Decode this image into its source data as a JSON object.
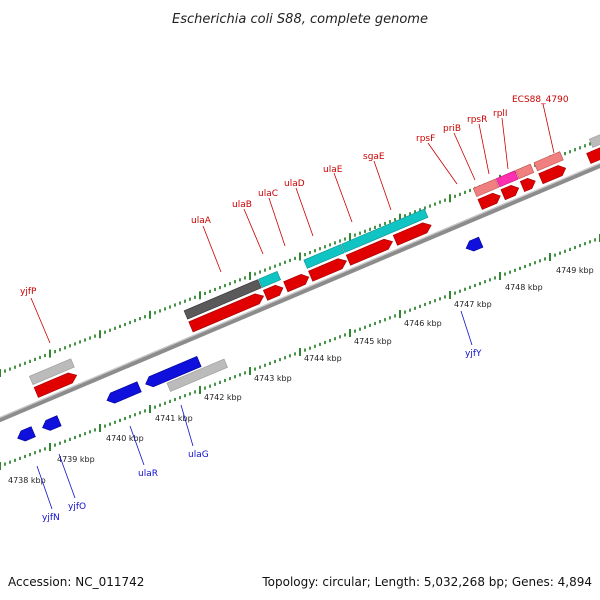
{
  "title": "Escherichia coli S88, complete genome",
  "footer": {
    "accession": "Accession: NC_011742",
    "stats": "Topology: circular; Length: 5,032,268 bp; Genes: 4,894"
  },
  "colors": {
    "forward_gene": "#e00000",
    "reverse_gene": "#1010dd",
    "gene_name_forward": "#cc0000",
    "gene_name_reverse": "#1010cc",
    "pseudo_gray": "#bbbbbb",
    "dark_gray": "#555555",
    "cyan": "#11c4c4",
    "pink": "#f08080",
    "magenta": "#ff2fb0",
    "tick_green": "#1a7a1a"
  },
  "ruler": {
    "unit": "kbp",
    "labels": [
      "4738 kbp",
      "4739 kbp",
      "4740 kbp",
      "4741 kbp",
      "4742 kbp",
      "4743 kbp",
      "4744 kbp",
      "4745 kbp",
      "4746 kbp",
      "4747 kbp",
      "4748 kbp",
      "4749 kbp"
    ]
  },
  "gene_labels": [
    {
      "text": "yjfP",
      "strand": "forward"
    },
    {
      "text": "ulaA",
      "strand": "forward"
    },
    {
      "text": "ulaB",
      "strand": "forward"
    },
    {
      "text": "ulaC",
      "strand": "forward"
    },
    {
      "text": "ulaD",
      "strand": "forward"
    },
    {
      "text": "ulaE",
      "strand": "forward"
    },
    {
      "text": "sgaE",
      "strand": "forward"
    },
    {
      "text": "rpsF",
      "strand": "forward"
    },
    {
      "text": "priB",
      "strand": "forward"
    },
    {
      "text": "rpsR",
      "strand": "forward"
    },
    {
      "text": "rplI",
      "strand": "forward"
    },
    {
      "text": "ECS88_4790",
      "strand": "forward"
    },
    {
      "text": "yjfY",
      "strand": "reverse"
    },
    {
      "text": "ulaG",
      "strand": "reverse"
    },
    {
      "text": "ulaR",
      "strand": "reverse"
    },
    {
      "text": "yjfO",
      "strand": "reverse"
    },
    {
      "text": "yjfN",
      "strand": "reverse"
    }
  ]
}
